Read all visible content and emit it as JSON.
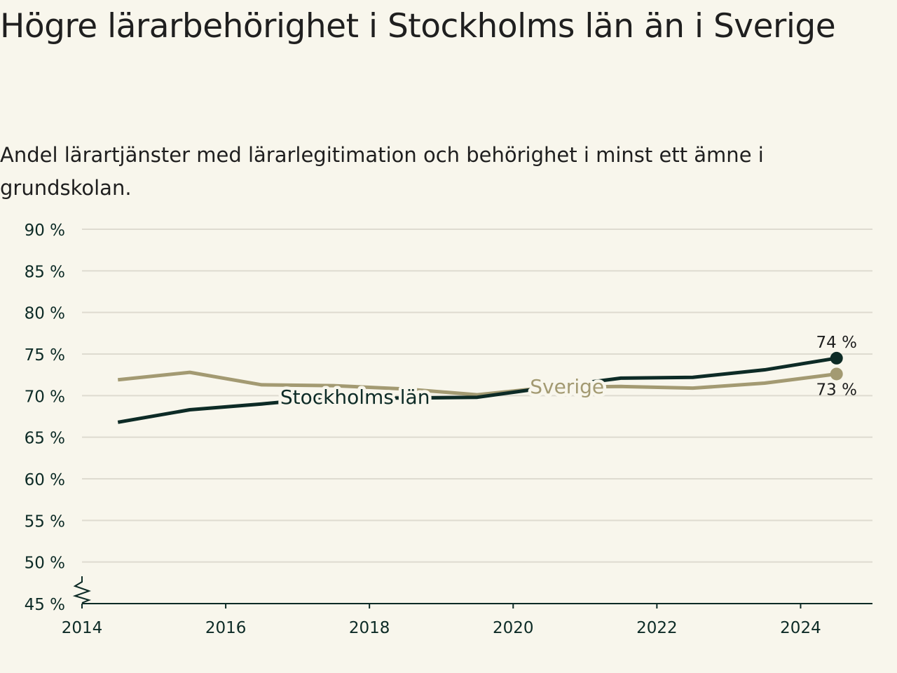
{
  "header": {
    "title": "Högre lärarbehörighet i Stockholms län än i Sverige",
    "subtitle": "Andel lärartjänster med lärarlegitimation och behörighet i minst ett ämne i grundskolan."
  },
  "colors": {
    "background": "#f8f6ec",
    "stockholm": "#0d2b26",
    "sverige": "#a39a72",
    "grid": "#dedbd0",
    "axis": "#0d2b26"
  },
  "chart_data": {
    "type": "line",
    "xlim": [
      2014,
      2025
    ],
    "ylim": [
      45,
      90
    ],
    "y_ticks": [
      45,
      50,
      55,
      60,
      65,
      70,
      75,
      80,
      85,
      90
    ],
    "y_tick_labels": [
      "45 %",
      "50 %",
      "55 %",
      "60 %",
      "65 %",
      "70 %",
      "75 %",
      "80 %",
      "85 %",
      "90 %"
    ],
    "x_ticks": [
      2014,
      2016,
      2018,
      2020,
      2022,
      2024
    ],
    "x_tick_labels": [
      "2014",
      "2016",
      "2018",
      "2020",
      "2022",
      "2024"
    ],
    "y_axis_break": true,
    "grid": true,
    "series": [
      {
        "name": "Sverige",
        "color": "#a39a72",
        "x": [
          2014.5,
          2015.5,
          2016.5,
          2017.5,
          2018.5,
          2019.5,
          2020.5,
          2021.5,
          2022.5,
          2023.5,
          2024.5
        ],
        "values": [
          71.9,
          72.8,
          71.3,
          71.2,
          70.8,
          70.1,
          71.0,
          71.1,
          70.9,
          71.5,
          72.6
        ],
        "end_label": "73 %",
        "label_x": 2020.75
      },
      {
        "name": "Stockholms län",
        "color": "#0d2b26",
        "x": [
          2014.5,
          2015.5,
          2016.5,
          2017.5,
          2018.5,
          2019.5,
          2020.5,
          2021.5,
          2022.5,
          2023.5,
          2024.5
        ],
        "values": [
          66.8,
          68.3,
          69.0,
          69.8,
          69.7,
          69.8,
          71.0,
          72.1,
          72.2,
          73.1,
          74.5
        ],
        "end_label": "74 %",
        "label_x": 2017.8
      }
    ]
  }
}
